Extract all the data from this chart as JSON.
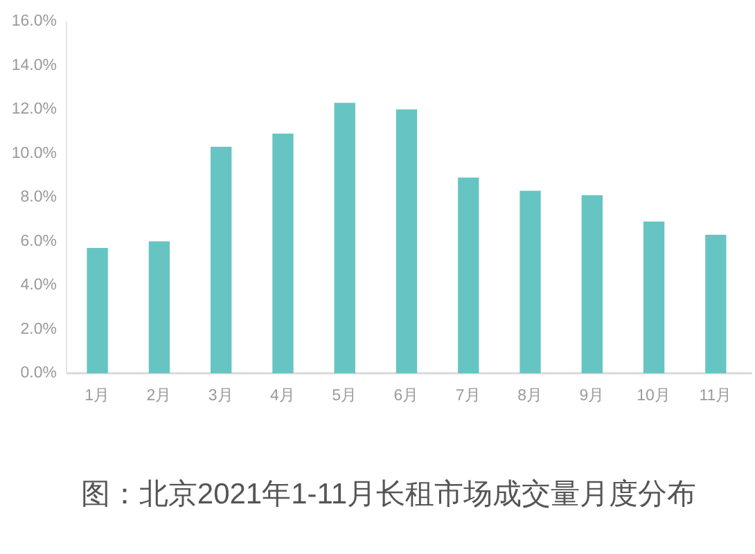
{
  "chart_data": {
    "type": "bar",
    "title": "图：北京2021年1-11月长租市场成交量月度分布",
    "categories": [
      "1月",
      "2月",
      "3月",
      "4月",
      "5月",
      "6月",
      "7月",
      "8月",
      "9月",
      "10月",
      "11月"
    ],
    "values": [
      5.7,
      6.0,
      10.3,
      10.9,
      12.3,
      12.0,
      8.9,
      8.3,
      8.1,
      6.9,
      6.3
    ],
    "color": "#66c5c2",
    "ylim": [
      0,
      16
    ],
    "yticks": [
      {
        "value": 0,
        "label": "0.0%"
      },
      {
        "value": 2,
        "label": "2.0%"
      },
      {
        "value": 4,
        "label": "4.0%"
      },
      {
        "value": 6,
        "label": "6.0%"
      },
      {
        "value": 8,
        "label": "8.0%"
      },
      {
        "value": 10,
        "label": "10.0%"
      },
      {
        "value": 12,
        "label": "12.0%"
      },
      {
        "value": 14,
        "label": "14.0%"
      },
      {
        "value": 16,
        "label": "16.0%"
      }
    ]
  }
}
